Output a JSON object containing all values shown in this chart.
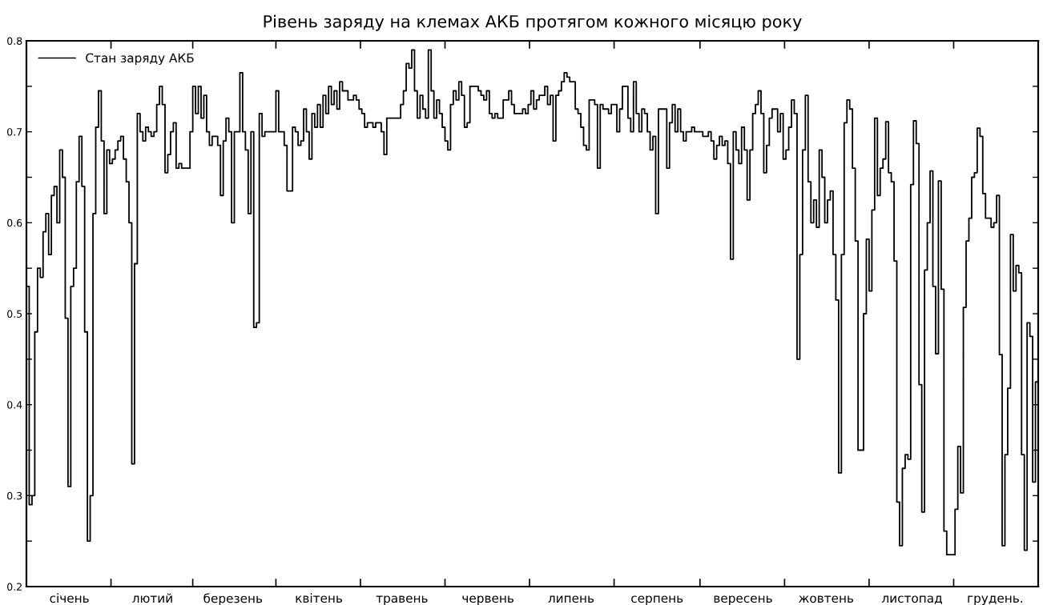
{
  "chart_data": {
    "type": "step",
    "title": "Рівень заряду на клемах АКБ протягом кожного місяцю року",
    "categories": [
      null,
      null,
      null,
      null,
      null,
      null,
      null,
      null,
      null,
      null,
      null,
      null,
      null,
      null,
      null,
      "січень",
      null,
      null,
      null,
      null,
      null,
      null,
      null,
      null,
      null,
      null,
      null,
      null,
      null,
      null,
      null,
      null,
      null,
      null,
      null,
      null,
      null,
      null,
      null,
      null,
      null,
      null,
      null,
      null,
      null,
      "лютий",
      null,
      null,
      null,
      null,
      null,
      null,
      null,
      null,
      null,
      null,
      null,
      null,
      null,
      null,
      null,
      null,
      null,
      null,
      null,
      null,
      null,
      null,
      null,
      null,
      null,
      null,
      null,
      null,
      "березень",
      null,
      null,
      null,
      null,
      null,
      null,
      null,
      null,
      null,
      null,
      null,
      null,
      null,
      null,
      null,
      null,
      null,
      null,
      null,
      null,
      null,
      null,
      null,
      null,
      null,
      null,
      null,
      null,
      null,
      null,
      "квітень",
      null,
      null,
      null,
      null,
      null,
      null,
      null,
      null,
      null,
      null,
      null,
      null,
      null,
      null,
      null,
      null,
      null,
      null,
      null,
      null,
      null,
      null,
      null,
      null,
      null,
      null,
      null,
      null,
      null,
      "травень",
      null,
      null,
      null,
      null,
      null,
      null,
      null,
      null,
      null,
      null,
      null,
      null,
      null,
      null,
      null,
      null,
      null,
      null,
      null,
      null,
      null,
      null,
      null,
      null,
      null,
      null,
      null,
      null,
      null,
      null,
      "червень",
      null,
      null,
      null,
      null,
      null,
      null,
      null,
      null,
      null,
      null,
      null,
      null,
      null,
      null,
      null,
      null,
      null,
      null,
      null,
      null,
      null,
      null,
      null,
      null,
      null,
      null,
      null,
      null,
      null,
      "липень",
      null,
      null,
      null,
      null,
      null,
      null,
      null,
      null,
      null,
      null,
      null,
      null,
      null,
      null,
      null,
      null,
      null,
      null,
      null,
      null,
      null,
      null,
      null,
      null,
      null,
      null,
      null,
      null,
      null,
      null,
      "серпень",
      null,
      null,
      null,
      null,
      null,
      null,
      null,
      null,
      null,
      null,
      null,
      null,
      null,
      null,
      null,
      null,
      null,
      null,
      null,
      null,
      null,
      null,
      null,
      null,
      null,
      null,
      null,
      null,
      null,
      null,
      "вересень",
      null,
      null,
      null,
      null,
      null,
      null,
      null,
      null,
      null,
      null,
      null,
      null,
      null,
      null,
      null,
      null,
      null,
      null,
      null,
      null,
      null,
      null,
      null,
      null,
      null,
      null,
      null,
      null,
      null,
      "жовтень",
      null,
      null,
      null,
      null,
      null,
      null,
      null,
      null,
      null,
      null,
      null,
      null,
      null,
      null,
      null,
      null,
      null,
      null,
      null,
      null,
      null,
      null,
      null,
      null,
      null,
      null,
      null,
      null,
      null,
      null,
      "листопад",
      null,
      null,
      null,
      null,
      null,
      null,
      null,
      null,
      null,
      null,
      null,
      null,
      null,
      null,
      null,
      null,
      null,
      null,
      null,
      null,
      null,
      null,
      null,
      null,
      null,
      null,
      null,
      null,
      null,
      "грудень.",
      null,
      null,
      null,
      null,
      null,
      null,
      null,
      null,
      null,
      null,
      null,
      null,
      null,
      null,
      null
    ],
    "series": [
      {
        "name": "Стан заряду АКБ",
        "color": "#000000",
        "values": [
          0.53,
          0.29,
          0.3,
          0.48,
          0.55,
          0.54,
          0.59,
          0.61,
          0.565,
          0.63,
          0.64,
          0.6,
          0.68,
          0.65,
          0.495,
          0.31,
          0.53,
          0.55,
          0.645,
          0.695,
          0.64,
          0.48,
          0.25,
          0.3,
          0.61,
          0.705,
          0.745,
          0.69,
          0.61,
          0.68,
          0.665,
          0.67,
          0.68,
          0.69,
          0.695,
          0.67,
          0.645,
          0.6,
          0.335,
          0.555,
          0.72,
          0.7,
          0.69,
          0.705,
          0.7,
          0.695,
          0.7,
          0.73,
          0.75,
          0.73,
          0.655,
          0.675,
          0.7,
          0.71,
          0.66,
          0.665,
          0.66,
          0.66,
          0.66,
          0.7,
          0.75,
          0.72,
          0.75,
          0.715,
          0.74,
          0.7,
          0.685,
          0.695,
          0.695,
          0.685,
          0.63,
          0.69,
          0.715,
          0.7,
          0.6,
          0.7,
          0.7,
          0.765,
          0.7,
          0.68,
          0.61,
          0.7,
          0.485,
          0.49,
          0.72,
          0.695,
          0.7,
          0.7,
          0.7,
          0.7,
          0.745,
          0.7,
          0.7,
          0.685,
          0.635,
          0.635,
          0.705,
          0.7,
          0.685,
          0.69,
          0.725,
          0.7,
          0.67,
          0.72,
          0.705,
          0.73,
          0.705,
          0.74,
          0.72,
          0.75,
          0.73,
          0.745,
          0.725,
          0.755,
          0.745,
          0.745,
          0.735,
          0.735,
          0.74,
          0.735,
          0.725,
          0.72,
          0.705,
          0.71,
          0.71,
          0.705,
          0.71,
          0.71,
          0.7,
          0.675,
          0.715,
          0.715,
          0.715,
          0.715,
          0.715,
          0.73,
          0.745,
          0.775,
          0.77,
          0.79,
          0.745,
          0.715,
          0.74,
          0.725,
          0.715,
          0.79,
          0.745,
          0.715,
          0.735,
          0.72,
          0.705,
          0.69,
          0.68,
          0.73,
          0.745,
          0.735,
          0.755,
          0.74,
          0.705,
          0.71,
          0.75,
          0.75,
          0.75,
          0.745,
          0.74,
          0.735,
          0.745,
          0.72,
          0.715,
          0.72,
          0.715,
          0.715,
          0.735,
          0.735,
          0.745,
          0.73,
          0.72,
          0.72,
          0.72,
          0.725,
          0.72,
          0.73,
          0.745,
          0.725,
          0.735,
          0.74,
          0.74,
          0.75,
          0.73,
          0.74,
          0.69,
          0.74,
          0.745,
          0.755,
          0.765,
          0.76,
          0.755,
          0.755,
          0.725,
          0.72,
          0.705,
          0.685,
          0.68,
          0.735,
          0.735,
          0.73,
          0.66,
          0.73,
          0.725,
          0.725,
          0.72,
          0.73,
          0.73,
          0.7,
          0.725,
          0.75,
          0.75,
          0.715,
          0.7,
          0.755,
          0.72,
          0.7,
          0.725,
          0.72,
          0.7,
          0.68,
          0.695,
          0.61,
          0.725,
          0.725,
          0.725,
          0.66,
          0.71,
          0.73,
          0.7,
          0.725,
          0.7,
          0.69,
          0.7,
          0.7,
          0.705,
          0.7,
          0.7,
          0.7,
          0.695,
          0.695,
          0.7,
          0.69,
          0.67,
          0.685,
          0.695,
          0.685,
          0.69,
          0.665,
          0.56,
          0.7,
          0.68,
          0.665,
          0.705,
          0.68,
          0.625,
          0.68,
          0.72,
          0.73,
          0.745,
          0.72,
          0.655,
          0.685,
          0.715,
          0.725,
          0.725,
          0.7,
          0.72,
          0.67,
          0.68,
          0.705,
          0.735,
          0.72,
          0.45,
          0.565,
          0.68,
          0.74,
          0.645,
          0.6,
          0.625,
          0.595,
          0.68,
          0.65,
          0.6,
          0.625,
          0.635,
          0.565,
          0.515,
          0.325,
          0.565,
          0.71,
          0.735,
          0.725,
          0.66,
          0.58,
          0.35,
          0.35,
          0.5,
          0.582,
          0.525,
          0.614,
          0.715,
          0.63,
          0.66,
          0.67,
          0.711,
          0.655,
          0.645,
          0.558,
          0.293,
          0.245,
          0.33,
          0.345,
          0.34,
          0.642,
          0.712,
          0.687,
          0.422,
          0.282,
          0.548,
          0.6,
          0.657,
          0.53,
          0.456,
          0.646,
          0.527,
          0.261,
          0.235,
          0.235,
          0.235,
          0.285,
          0.354,
          0.303,
          0.507,
          0.58,
          0.605,
          0.65,
          0.655,
          0.704,
          0.695,
          0.632,
          0.605,
          0.605,
          0.595,
          0.6,
          0.63,
          0.455,
          0.245,
          0.345,
          0.418,
          0.587,
          0.525,
          0.553,
          0.545,
          0.345,
          0.24,
          0.49,
          0.475,
          0.315,
          0.425
        ]
      }
    ],
    "ylim": [
      0.2,
      0.8
    ],
    "yticks": [
      0.2,
      {
        "value": 0.25,
        "label": null
      },
      0.3,
      {
        "value": 0.35,
        "label": null
      },
      0.4,
      {
        "value": 0.45,
        "label": null
      },
      0.5,
      {
        "value": 0.55,
        "label": null
      },
      0.6,
      {
        "value": 0.65,
        "label": null
      },
      0.7,
      {
        "value": 0.75,
        "label": null
      },
      0.8
    ],
    "grid": false,
    "legend": "top left",
    "line_style": "solid",
    "marker": "none"
  }
}
